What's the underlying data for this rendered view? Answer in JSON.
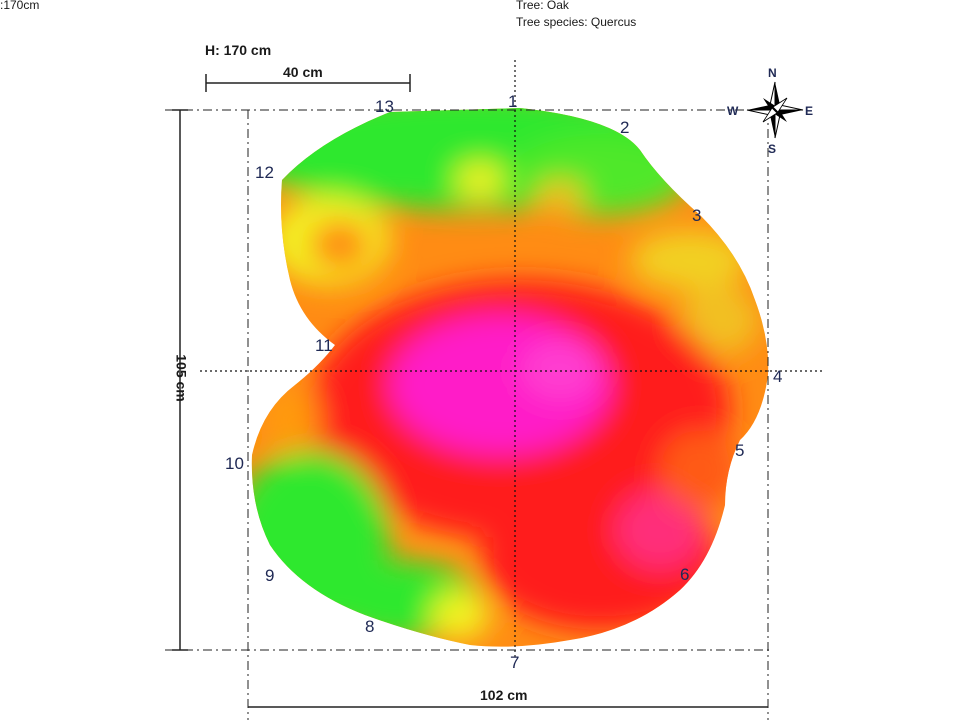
{
  "header": {
    "height_fragment": ":170cm",
    "tree_line": "Tree: Oak",
    "species_line": "Tree species: Quercus"
  },
  "scale": {
    "height_label": "H: 170 cm",
    "bar_label": "40 cm"
  },
  "dimensions": {
    "width_label": "102 cm",
    "depth_label": "105 cm"
  },
  "compass": {
    "n": "N",
    "e": "E",
    "s": "S",
    "w": "W"
  },
  "sensor_points": [
    "1",
    "2",
    "3",
    "4",
    "5",
    "6",
    "7",
    "8",
    "9",
    "10",
    "11",
    "12",
    "13"
  ],
  "colors": {
    "green": "#2ee82e",
    "yellow": "#f2f220",
    "orange": "#ff8c14",
    "red": "#ff1e1e",
    "magenta": "#ff1ec8"
  }
}
